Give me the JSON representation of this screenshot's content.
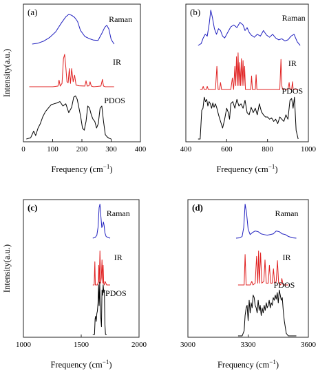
{
  "chart_data": [
    {
      "type": "line",
      "panel_label": "(a)",
      "xlabel": "Frequency (cm−1)",
      "ylabel": "Intensity(a.u.)",
      "xlim": [
        0,
        400
      ],
      "xticks": [
        0,
        100,
        200,
        300,
        400
      ],
      "y_ticks_shown": false,
      "grid": false,
      "legend": "none; series names printed next to each curve",
      "series": [
        {
          "name": "Raman",
          "color": "#1f1fbf",
          "x": [
            30,
            50,
            70,
            90,
            110,
            130,
            145,
            155,
            165,
            175,
            185,
            195,
            210,
            225,
            240,
            255,
            268,
            278,
            285,
            292,
            300,
            310
          ],
          "y": [
            0.0,
            0.03,
            0.1,
            0.22,
            0.4,
            0.7,
            0.9,
            0.98,
            0.95,
            0.88,
            0.75,
            0.45,
            0.25,
            0.18,
            0.13,
            0.12,
            0.35,
            0.55,
            0.62,
            0.5,
            0.15,
            0.0
          ]
        },
        {
          "name": "IR",
          "color": "#e02020",
          "x": [
            20,
            100,
            118,
            122,
            126,
            132,
            137,
            141,
            145,
            149,
            153,
            157,
            161,
            165,
            170,
            175,
            180,
            190,
            210,
            214,
            218,
            224,
            228,
            232,
            240,
            265,
            270,
            274,
            280,
            310
          ],
          "y": [
            0.0,
            0.0,
            0.02,
            0.2,
            0.02,
            0.1,
            0.85,
            0.98,
            0.6,
            0.15,
            0.12,
            0.55,
            0.1,
            0.55,
            0.15,
            0.35,
            0.05,
            0.03,
            0.02,
            0.18,
            0.02,
            0.03,
            0.15,
            0.02,
            0.0,
            0.02,
            0.22,
            0.02,
            0.0,
            0.0
          ]
        },
        {
          "name": "PDOS",
          "color": "#000000",
          "x": [
            10,
            25,
            35,
            42,
            50,
            58,
            66,
            75,
            85,
            95,
            105,
            115,
            125,
            135,
            145,
            155,
            165,
            172,
            178,
            184,
            190,
            196,
            202,
            208,
            214,
            220,
            226,
            232,
            238,
            244,
            250,
            256,
            262,
            268,
            274,
            280,
            286,
            292,
            300
          ],
          "y": [
            0.0,
            0.03,
            0.18,
            0.08,
            0.25,
            0.35,
            0.5,
            0.62,
            0.7,
            0.78,
            0.8,
            0.82,
            0.85,
            0.75,
            0.8,
            0.6,
            0.72,
            0.95,
            0.98,
            0.9,
            0.7,
            0.5,
            0.25,
            0.2,
            0.4,
            0.75,
            0.7,
            0.55,
            0.45,
            0.4,
            0.25,
            0.35,
            0.7,
            0.75,
            0.4,
            0.1,
            0.05,
            0.02,
            0.0
          ]
        }
      ]
    },
    {
      "type": "line",
      "panel_label": "(b)",
      "xlabel": "Frequency (cm−1)",
      "ylabel": "",
      "xlim": [
        400,
        1000
      ],
      "xticks": [
        400,
        600,
        800,
        1000
      ],
      "y_ticks_shown": false,
      "grid": false,
      "legend": "none; series names printed next to each curve",
      "series": [
        {
          "name": "Raman",
          "color": "#1f1fbf",
          "x": [
            460,
            475,
            485,
            495,
            505,
            515,
            522,
            530,
            540,
            550,
            560,
            570,
            580,
            590,
            605,
            620,
            635,
            650,
            665,
            680,
            690,
            700,
            710,
            720,
            735,
            750,
            765,
            780,
            795,
            810,
            825,
            840,
            855,
            870,
            885,
            900,
            915,
            930,
            945,
            960
          ],
          "y": [
            0.0,
            0.05,
            0.2,
            0.3,
            0.25,
            0.6,
            0.95,
            0.75,
            0.45,
            0.3,
            0.45,
            0.4,
            0.25,
            0.2,
            0.35,
            0.5,
            0.55,
            0.48,
            0.62,
            0.55,
            0.4,
            0.48,
            0.35,
            0.28,
            0.22,
            0.3,
            0.25,
            0.4,
            0.28,
            0.22,
            0.3,
            0.2,
            0.15,
            0.18,
            0.12,
            0.15,
            0.25,
            0.3,
            0.1,
            0.0
          ]
        },
        {
          "name": "IR",
          "color": "#e02020",
          "x": [
            470,
            480,
            485,
            490,
            500,
            505,
            510,
            545,
            552,
            558,
            565,
            570,
            575,
            580,
            620,
            628,
            634,
            640,
            644,
            648,
            652,
            656,
            660,
            664,
            668,
            672,
            676,
            680,
            684,
            688,
            692,
            700,
            718,
            722,
            726,
            740,
            744,
            748,
            790,
            860,
            866,
            870,
            874,
            900,
            906,
            910,
            918,
            922,
            926,
            950
          ],
          "y": [
            0.0,
            0.0,
            0.08,
            0.0,
            0.0,
            0.08,
            0.0,
            0.0,
            0.6,
            0.0,
            0.0,
            0.18,
            0.0,
            0.0,
            0.0,
            0.3,
            0.0,
            0.6,
            0.1,
            0.85,
            0.1,
            0.95,
            0.1,
            0.7,
            0.1,
            0.8,
            0.1,
            0.75,
            0.1,
            0.6,
            0.0,
            0.0,
            0.0,
            0.35,
            0.0,
            0.0,
            0.38,
            0.0,
            0.0,
            0.0,
            0.78,
            0.1,
            0.0,
            0.0,
            0.18,
            0.0,
            0.0,
            0.2,
            0.0,
            0.0
          ]
        },
        {
          "name": "PDOS",
          "color": "#000000",
          "x": [
            460,
            470,
            478,
            484,
            490,
            496,
            502,
            508,
            514,
            520,
            526,
            532,
            538,
            545,
            552,
            560,
            570,
            580,
            590,
            600,
            608,
            614,
            620,
            630,
            640,
            650,
            660,
            670,
            680,
            690,
            700,
            710,
            720,
            730,
            740,
            750,
            760,
            770,
            780,
            790,
            800,
            810,
            820,
            830,
            840,
            850,
            860,
            870,
            880,
            890,
            900,
            910,
            918,
            925,
            932,
            940,
            950
          ],
          "y": [
            0.0,
            0.0,
            0.65,
            0.7,
            0.95,
            0.85,
            0.9,
            0.75,
            0.85,
            0.8,
            0.7,
            0.82,
            0.72,
            0.8,
            0.7,
            0.55,
            0.4,
            0.25,
            0.45,
            0.7,
            0.6,
            0.45,
            0.8,
            0.85,
            0.7,
            0.9,
            0.75,
            0.8,
            0.7,
            0.88,
            0.6,
            0.55,
            0.72,
            0.6,
            0.7,
            0.55,
            0.8,
            0.62,
            0.55,
            0.5,
            0.5,
            0.45,
            0.48,
            0.4,
            0.45,
            0.35,
            0.5,
            0.45,
            0.4,
            0.55,
            0.45,
            0.88,
            0.92,
            0.7,
            0.95,
            0.2,
            0.0
          ]
        }
      ]
    },
    {
      "type": "line",
      "panel_label": "(c)",
      "xlabel": "Frequency (cm−1)",
      "ylabel": "Intensity(a.u.)",
      "xlim": [
        1000,
        2000
      ],
      "xticks": [
        1000,
        1500,
        2000
      ],
      "y_ticks_shown": false,
      "grid": false,
      "legend": "none; series names printed next to each curve",
      "series": [
        {
          "name": "Raman",
          "color": "#1f1fbf",
          "x": [
            1600,
            1620,
            1635,
            1645,
            1655,
            1662,
            1670,
            1678,
            1686,
            1692,
            1698,
            1705,
            1715,
            1730,
            1750
          ],
          "y": [
            0.0,
            0.02,
            0.08,
            0.3,
            0.85,
            0.95,
            0.6,
            0.3,
            0.35,
            0.45,
            0.35,
            0.15,
            0.05,
            0.02,
            0.0
          ]
        },
        {
          "name": "IR",
          "color": "#e02020",
          "x": [
            1600,
            1612,
            1618,
            1622,
            1640,
            1648,
            1652,
            1656,
            1662,
            1668,
            1674,
            1680,
            1686,
            1690,
            1694,
            1700,
            1706,
            1720,
            1750
          ],
          "y": [
            0.0,
            0.0,
            0.65,
            0.0,
            0.0,
            0.1,
            0.55,
            0.05,
            0.95,
            0.05,
            0.2,
            0.7,
            0.05,
            0.55,
            0.05,
            0.0,
            0.1,
            0.0,
            0.0
          ]
        },
        {
          "name": "PDOS",
          "color": "#000000",
          "x": [
            1600,
            1615,
            1620,
            1625,
            1630,
            1635,
            1640,
            1645,
            1650,
            1655,
            1660,
            1665,
            1670,
            1675,
            1680,
            1685,
            1690,
            1695,
            1700,
            1705,
            1710,
            1720
          ],
          "y": [
            0.0,
            0.0,
            0.3,
            0.35,
            0.25,
            0.4,
            0.45,
            0.6,
            0.95,
            0.55,
            1.0,
            0.4,
            0.3,
            0.15,
            0.85,
            0.75,
            0.95,
            0.8,
            0.85,
            0.2,
            0.0,
            0.0
          ]
        }
      ]
    },
    {
      "type": "line",
      "panel_label": "(d)",
      "xlabel": "Frequency (cm−1)",
      "ylabel": "",
      "xlim": [
        3000,
        3600
      ],
      "xticks": [
        3000,
        3300,
        3600
      ],
      "y_ticks_shown": false,
      "grid": false,
      "legend": "none; series names printed next to each curve",
      "series": [
        {
          "name": "Raman",
          "color": "#1f1fbf",
          "x": [
            3240,
            3260,
            3270,
            3278,
            3285,
            3292,
            3300,
            3310,
            3320,
            3335,
            3350,
            3365,
            3380,
            3395,
            3410,
            3425,
            3440,
            3455,
            3470,
            3485,
            3500,
            3520,
            3540
          ],
          "y": [
            0.0,
            0.01,
            0.05,
            0.3,
            0.95,
            0.7,
            0.25,
            0.1,
            0.15,
            0.2,
            0.18,
            0.12,
            0.1,
            0.08,
            0.1,
            0.12,
            0.2,
            0.18,
            0.12,
            0.1,
            0.05,
            0.01,
            0.0
          ]
        },
        {
          "name": "IR",
          "color": "#e02020",
          "x": [
            3250,
            3280,
            3285,
            3290,
            3310,
            3318,
            3324,
            3335,
            3342,
            3348,
            3352,
            3356,
            3362,
            3368,
            3378,
            3384,
            3390,
            3400,
            3406,
            3412,
            3420,
            3426,
            3432,
            3440,
            3446,
            3452,
            3462,
            3468,
            3474,
            3500
          ],
          "y": [
            0.0,
            0.0,
            0.85,
            0.0,
            0.0,
            0.1,
            0.0,
            0.05,
            0.8,
            0.05,
            0.95,
            0.05,
            0.9,
            0.05,
            0.1,
            0.7,
            0.05,
            0.05,
            0.55,
            0.05,
            0.05,
            0.45,
            0.05,
            0.1,
            0.68,
            0.05,
            0.0,
            0.18,
            0.0,
            0.0
          ]
        },
        {
          "name": "PDOS",
          "color": "#000000",
          "x": [
            3250,
            3270,
            3280,
            3285,
            3290,
            3295,
            3300,
            3305,
            3310,
            3315,
            3320,
            3325,
            3330,
            3335,
            3340,
            3345,
            3350,
            3355,
            3360,
            3365,
            3370,
            3375,
            3380,
            3385,
            3390,
            3395,
            3400,
            3405,
            3410,
            3415,
            3420,
            3425,
            3430,
            3435,
            3440,
            3445,
            3450,
            3455,
            3460,
            3465,
            3470,
            3475,
            3480,
            3490,
            3500,
            3540
          ],
          "y": [
            0.0,
            0.0,
            0.1,
            0.4,
            0.55,
            0.6,
            0.3,
            0.7,
            0.45,
            0.65,
            0.55,
            0.8,
            0.75,
            0.6,
            0.55,
            0.45,
            0.7,
            0.5,
            0.6,
            0.4,
            0.55,
            0.45,
            0.6,
            0.5,
            0.65,
            0.55,
            0.6,
            0.7,
            0.55,
            0.65,
            0.6,
            0.75,
            0.7,
            0.8,
            0.72,
            0.85,
            0.65,
            0.9,
            0.8,
            0.7,
            0.75,
            0.5,
            0.3,
            0.05,
            0.0,
            0.0
          ]
        }
      ]
    }
  ]
}
